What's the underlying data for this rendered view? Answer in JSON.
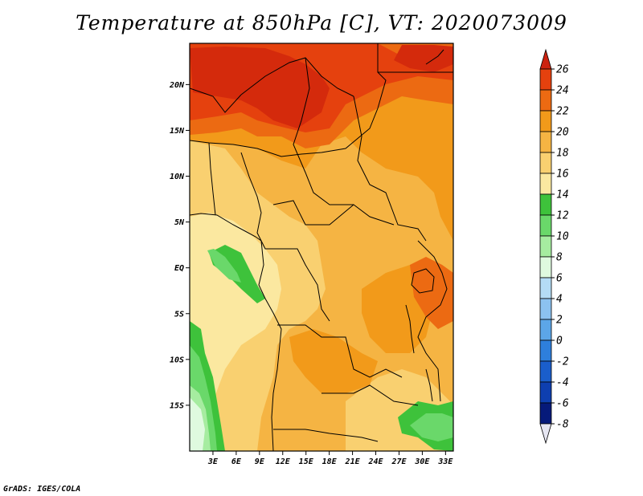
{
  "title": "Temperature at 850hPa [C], VT: 2020073009",
  "credit": "GrADS: IGES/COLA",
  "map": {
    "lon_range": [
      0,
      34
    ],
    "lat_range": [
      -20,
      24.5
    ],
    "lat_ticks": [
      {
        "value": 20,
        "label": "20N"
      },
      {
        "value": 15,
        "label": "15N"
      },
      {
        "value": 10,
        "label": "10N"
      },
      {
        "value": 5,
        "label": "5N"
      },
      {
        "value": 0,
        "label": "EQ"
      },
      {
        "value": -5,
        "label": "5S"
      },
      {
        "value": -10,
        "label": "10S"
      },
      {
        "value": -15,
        "label": "15S"
      }
    ],
    "lon_ticks": [
      {
        "value": 3,
        "label": "3E"
      },
      {
        "value": 6,
        "label": "6E"
      },
      {
        "value": 9,
        "label": "9E"
      },
      {
        "value": 12,
        "label": "12E"
      },
      {
        "value": 15,
        "label": "15E"
      },
      {
        "value": 18,
        "label": "18E"
      },
      {
        "value": 21,
        "label": "21E"
      },
      {
        "value": 24,
        "label": "24E"
      },
      {
        "value": 27,
        "label": "27E"
      },
      {
        "value": 30,
        "label": "30E"
      },
      {
        "value": 33,
        "label": "33E"
      }
    ]
  },
  "colorbar": {
    "labels": [
      "26",
      "24",
      "22",
      "20",
      "18",
      "16",
      "14",
      "12",
      "10",
      "8",
      "6",
      "4",
      "2",
      "0",
      "-2",
      "-4",
      "-6",
      "-8"
    ],
    "colors": [
      "#d42a0c",
      "#e5410e",
      "#ec6a12",
      "#f29a1a",
      "#f5b443",
      "#f9d070",
      "#fbe8a0",
      "#3ec23b",
      "#6ad86a",
      "#a6eca0",
      "#dffadf",
      "#b4dcf5",
      "#8cc2f0",
      "#5ca6e8",
      "#2e7fdc",
      "#1a5ecb",
      "#0e3fb0",
      "#061a7a"
    ],
    "top_color": "#cc2210",
    "bottom_color": "#e6e6f2"
  }
}
